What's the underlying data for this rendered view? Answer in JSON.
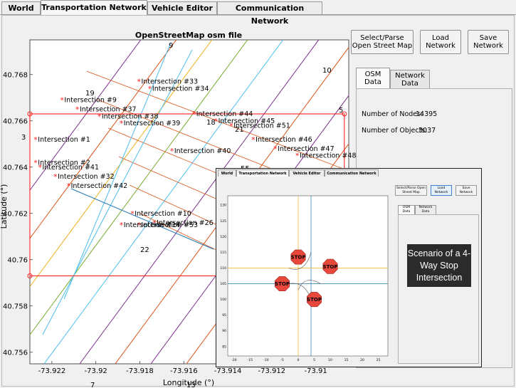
{
  "tabs": [
    "World",
    "Transportation Network",
    "Vehicle Editor",
    "Communication Network"
  ],
  "active_tab": "Transportation Network",
  "plot": {
    "title": "OpenStreetMap osm file",
    "xlabel": "Longitude (°)",
    "ylabel": "Latitude (°)",
    "x_ticks": [
      "-73.922",
      "-73.92",
      "-73.918",
      "-73.916",
      "-73.914",
      "-73.912",
      "-73.91"
    ],
    "y_ticks": [
      "40.768",
      "40.766",
      "40.764",
      "40.762",
      "40.76",
      "40.758",
      "40.756"
    ],
    "xlim": [
      -73.923,
      -73.9085
    ],
    "ylim": [
      40.7555,
      40.7695
    ],
    "intersections": [
      {
        "label": "Intersection #1",
        "x": -73.9227,
        "y": 40.7652
      },
      {
        "label": "Intersection #2",
        "x": -73.9227,
        "y": 40.7642
      },
      {
        "label": "Intersection #9",
        "x": -73.9215,
        "y": 40.7669
      },
      {
        "label": "Intersection #37",
        "x": -73.9208,
        "y": 40.7665
      },
      {
        "label": "Intersection #38",
        "x": -73.9198,
        "y": 40.7662
      },
      {
        "label": "Intersection #39",
        "x": -73.9188,
        "y": 40.7659
      },
      {
        "label": "Intersection #33",
        "x": -73.918,
        "y": 40.7677
      },
      {
        "label": "Intersection #34",
        "x": -73.9175,
        "y": 40.7674
      },
      {
        "label": "Intersection #41",
        "x": -73.9225,
        "y": 40.764
      },
      {
        "label": "Intersection #32",
        "x": -73.9218,
        "y": 40.7636
      },
      {
        "label": "Intersection #42",
        "x": -73.9212,
        "y": 40.7632
      },
      {
        "label": "Intersection #40",
        "x": -73.9165,
        "y": 40.7647
      },
      {
        "label": "Intersection #44",
        "x": -73.9155,
        "y": 40.7663
      },
      {
        "label": "Intersection #45",
        "x": -73.9145,
        "y": 40.766
      },
      {
        "label": "Intersection #51",
        "x": -73.9138,
        "y": 40.7658
      },
      {
        "label": "Intersection #46",
        "x": -73.9128,
        "y": 40.7652
      },
      {
        "label": "Intersection #47",
        "x": -73.9118,
        "y": 40.7648
      },
      {
        "label": "Intersection #48",
        "x": -73.9108,
        "y": 40.7645
      },
      {
        "label": "Intersection #10",
        "x": -73.9183,
        "y": 40.762
      },
      {
        "label": "Intersection #26",
        "x": -73.9173,
        "y": 40.7616
      },
      {
        "label": "Intersection #53",
        "x": -73.918,
        "y": 40.7615
      },
      {
        "label": "Intersection #14",
        "x": -73.9188,
        "y": 40.7615
      }
    ],
    "road_numbers": [
      "9",
      "10",
      "19",
      "3",
      "5",
      "22",
      "7",
      "13",
      "18",
      "21",
      "55"
    ],
    "bounds_box": {
      "x": [
        -73.923,
        -73.9087
      ],
      "y": [
        40.7593,
        40.7663
      ]
    }
  },
  "buttons": {
    "select_parse": "Select/Parse Open Street Map",
    "load_network": "Load Network",
    "save_network": "Save Network"
  },
  "subtabs": [
    "OSM Data",
    "Network Data"
  ],
  "active_subtab": "OSM Data",
  "osm_stats": {
    "nodes_label": "Number of Nodes:",
    "nodes_value": "14395",
    "objects_label": "Number of Objects:",
    "objects_value": "3037"
  },
  "inset": {
    "tabs": [
      "World",
      "Transportation Network",
      "Vehicle Editor",
      "Communication Network"
    ],
    "buttons": [
      "Select/Parse Open Street Map",
      "Load Network",
      "Save Network"
    ],
    "subtabs": [
      "OSM Data",
      "Network Data"
    ],
    "x_ticks": [
      "-20",
      "-15",
      "-10",
      "-5",
      "0",
      "5",
      "10",
      "15",
      "20",
      "25"
    ],
    "y_ticks": [
      "130",
      "125",
      "120",
      "115",
      "110",
      "105",
      "100",
      "95",
      "90",
      "85"
    ],
    "stop_label": "STOP",
    "caption": "Scenario of a 4-Way Stop Intersection"
  },
  "colors": {
    "accent_red": "#ff2020",
    "blue_line": "#1f77b4",
    "cyan_line": "#4dbeee",
    "orange_line": "#edb120",
    "purple_line": "#7e2f8e",
    "green_line": "#77ac30",
    "red_line": "#d95319",
    "stop_sign": "#e8473c"
  }
}
